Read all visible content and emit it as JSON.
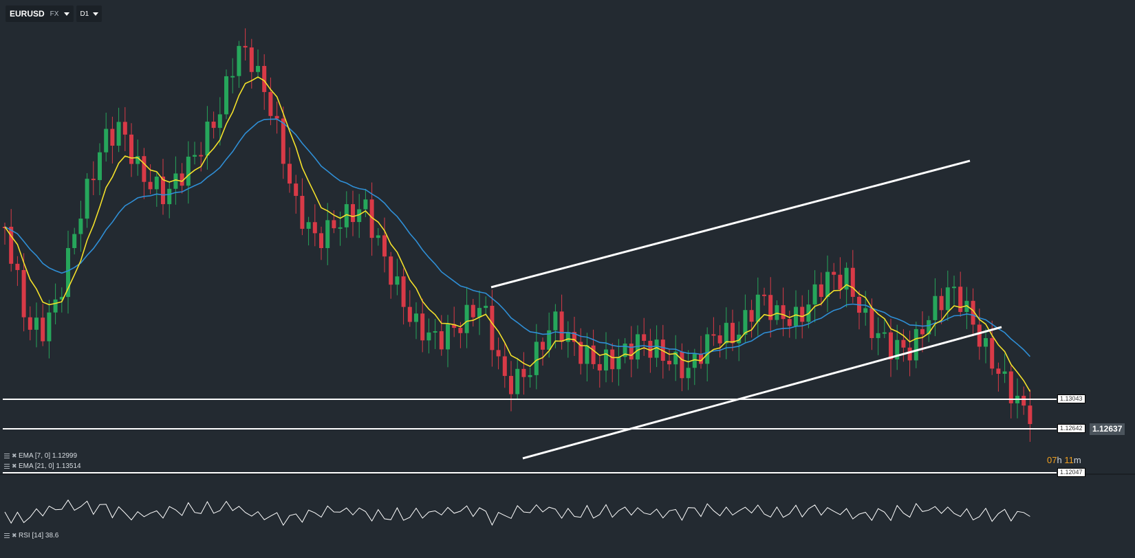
{
  "symbol": {
    "name": "EURUSD",
    "type": "FX",
    "timeframe": "D1"
  },
  "indicators": {
    "ema7": {
      "label": "EMA [7, 0] 1.12999",
      "color": "#f4e12a"
    },
    "ema21": {
      "label": "EMA [21, 0] 1.13514",
      "color": "#2f8fd6"
    },
    "rsi": {
      "label": "RSI [14] 38.6"
    }
  },
  "price_levels": {
    "level1": "1.13043",
    "level2": "1.12642",
    "level3": "1.12047"
  },
  "current_price": "1.12637",
  "countdown": {
    "hours": "07",
    "hours_unit": "h",
    "minutes": "11",
    "minutes_unit": "m"
  },
  "colors": {
    "background": "#232a31",
    "bull": "#26a65b",
    "bear": "#d83a47",
    "trendline": "#ffffff",
    "rsi_line": "#ffffff"
  }
}
